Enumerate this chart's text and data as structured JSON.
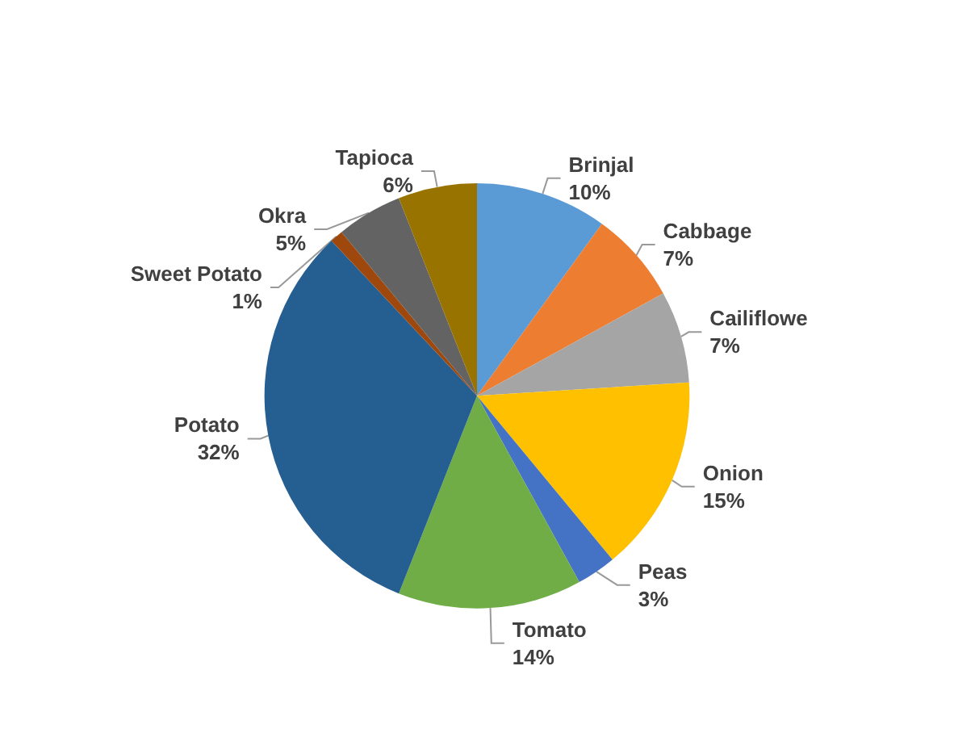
{
  "chart_data": {
    "type": "pie",
    "categories": [
      "Brinjal",
      "Cabbage",
      "Cailiflowe",
      "Onion",
      "Peas",
      "Tomato",
      "Potato",
      "Sweet Potato",
      "Okra",
      "Tapioca"
    ],
    "values": [
      10,
      7,
      7,
      15,
      3,
      14,
      32,
      1,
      5,
      6
    ],
    "value_labels": [
      "10%",
      "7%",
      "7%",
      "15%",
      "3%",
      "14%",
      "32%",
      "1%",
      "5%",
      "6%"
    ],
    "colors": [
      "#5b9bd5",
      "#ed7d31",
      "#a5a5a5",
      "#ffc000",
      "#4472c4",
      "#70ad47",
      "#255e91",
      "#9e480e",
      "#636363",
      "#997300"
    ],
    "legend": false
  }
}
